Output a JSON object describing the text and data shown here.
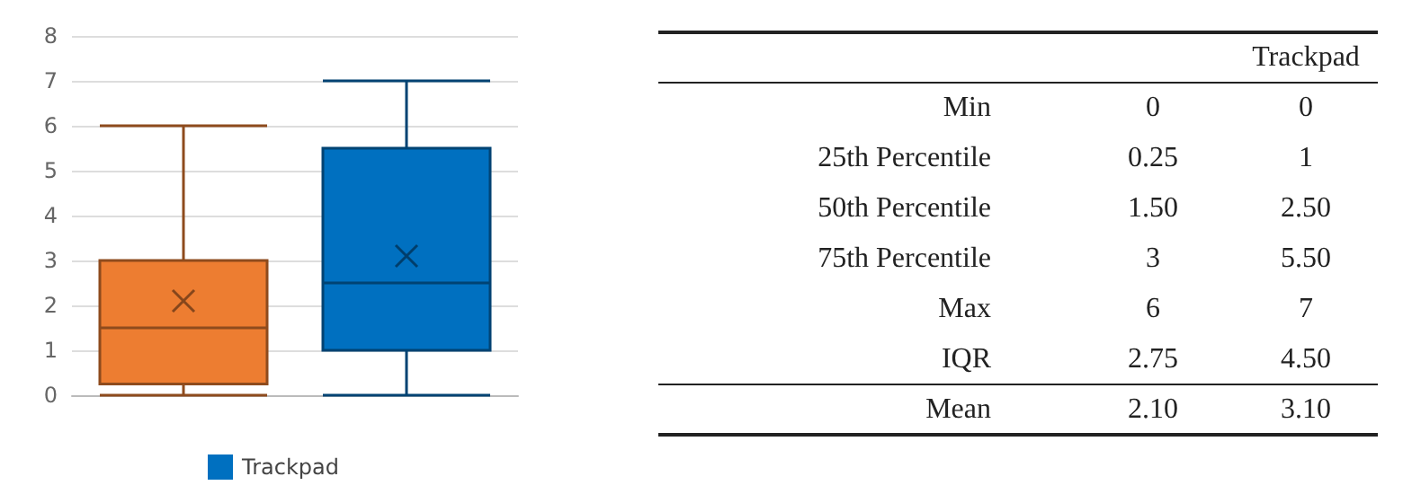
{
  "chart_data": [
    {
      "type": "box",
      "categories": [
        null,
        null
      ],
      "ylim": [
        0,
        8
      ],
      "yticks": [
        0,
        1,
        2,
        3,
        4,
        5,
        6,
        7,
        8
      ],
      "grid": "y",
      "legend": "bottom",
      "marker": "cross",
      "series": [
        {
          "color": "#ed7d31",
          "boxes": [
            {
              "low": 0,
              "q1": 0.25,
              "median": 1.5,
              "q3": 3,
              "high": 6,
              "mean": 2.1
            },
            null
          ]
        },
        {
          "name": "Trackpad",
          "color": "#0070c0",
          "boxes": [
            null,
            {
              "low": 0,
              "q1": 1,
              "median": 2.5,
              "q3": 5.5,
              "high": 7,
              "mean": 3.1
            }
          ]
        }
      ]
    },
    {
      "type": "other",
      "categories": [
        "Min",
        "25th Percentile",
        "50th Percentile",
        "75th Percentile",
        "Max",
        "IQR",
        "Mean"
      ],
      "series": [
        {
          "values": [
            0,
            0.25,
            1.5,
            3,
            6,
            2.75,
            2.1
          ],
          "value_labels": [
            "0",
            "0.25",
            "1.50",
            "3",
            "6",
            "2.75",
            "2.10"
          ]
        },
        {
          "name": "Trackpad",
          "values": [
            0,
            1,
            2.5,
            5.5,
            7,
            4.5,
            3.1
          ],
          "value_labels": [
            "0",
            "1",
            "2.50",
            "5.50",
            "7",
            "4.50",
            "3.10"
          ]
        }
      ]
    }
  ]
}
